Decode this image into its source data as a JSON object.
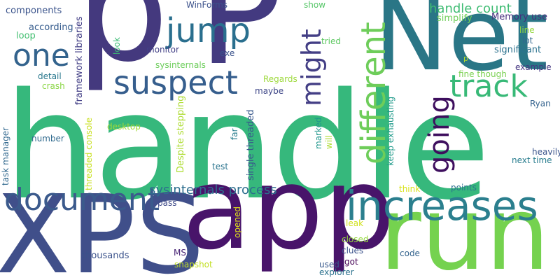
{
  "words": [
    {
      "text": "handle",
      "color": "#36b87c"
    },
    {
      "text": "p",
      "color": "#44397e"
    },
    {
      "text": "P",
      "color": "#433a80"
    },
    {
      "text": "Net",
      "color": "#2a7686"
    },
    {
      "text": "XPS",
      "color": "#404f8a"
    },
    {
      "text": "app",
      "color": "#48146a"
    },
    {
      "text": "run",
      "color": "#75d24f"
    },
    {
      "text": "increases",
      "color": "#2b7f8e"
    },
    {
      "text": "document",
      "color": "#3b5a8c"
    },
    {
      "text": "suspect",
      "color": "#365e8d"
    },
    {
      "text": "jump",
      "color": "#2a6f8e"
    },
    {
      "text": "one",
      "color": "#33638d"
    },
    {
      "text": "track",
      "color": "#38b977"
    },
    {
      "text": "different",
      "color": "#6ecd5a"
    },
    {
      "text": "going",
      "color": "#3e0f5e"
    },
    {
      "text": "might",
      "color": "#433e85"
    },
    {
      "text": "handle count",
      "color": "#3fbc73"
    },
    {
      "text": "sysinternals process",
      "color": "#2d6e8e"
    },
    {
      "text": "components",
      "color": "#3a538b"
    },
    {
      "text": "according",
      "color": "#365c8d"
    },
    {
      "text": "loop",
      "color": "#43bf71"
    },
    {
      "text": "framework libraries",
      "color": "#423e85"
    },
    {
      "text": "WinForms",
      "color": "#3b518b"
    },
    {
      "text": "show",
      "color": "#55c667"
    },
    {
      "text": "simplify",
      "color": "#6ece58"
    },
    {
      "text": "Memory use",
      "color": "#472f7d"
    },
    {
      "text": "line",
      "color": "#95d840"
    },
    {
      "text": "lot",
      "color": "#31678e"
    },
    {
      "text": "significant",
      "color": "#2c728e"
    },
    {
      "text": "look",
      "color": "#3cbb75"
    },
    {
      "text": "monitor",
      "color": "#424086"
    },
    {
      "text": "tried",
      "color": "#5ec962"
    },
    {
      "text": "exe",
      "color": "#3a528b"
    },
    {
      "text": "p",
      "color": "#b5de2b"
    },
    {
      "text": "sysinternals",
      "color": "#6ccd5a"
    },
    {
      "text": "example",
      "color": "#453781"
    },
    {
      "text": "fine though",
      "color": "#7ad151"
    },
    {
      "text": "Ryan",
      "color": "#33628d"
    },
    {
      "text": "Regards",
      "color": "#9dd93b"
    },
    {
      "text": "detail",
      "color": "#2a788e"
    },
    {
      "text": "crash",
      "color": "#8bd646"
    },
    {
      "text": "maybe",
      "color": "#3f4788"
    },
    {
      "text": "Despite stepping",
      "color": "#addc30"
    },
    {
      "text": "threaded console",
      "color": "#c8e020"
    },
    {
      "text": "desktop",
      "color": "#a2da37"
    },
    {
      "text": "single threaded",
      "color": "#38588c"
    },
    {
      "text": "keep exhausting",
      "color": "#1f9a8a"
    },
    {
      "text": "marked",
      "color": "#1f968b"
    },
    {
      "text": "will",
      "color": "#addc30"
    },
    {
      "text": "far",
      "color": "#287d8e"
    },
    {
      "text": "number",
      "color": "#306a8e"
    },
    {
      "text": "task manager",
      "color": "#31688e"
    },
    {
      "text": "heavily",
      "color": "#3a548c"
    },
    {
      "text": "next time",
      "color": "#287c8e"
    },
    {
      "text": "test",
      "color": "#2b748e"
    },
    {
      "text": "think",
      "color": "#d8e219"
    },
    {
      "text": "points",
      "color": "#2c718e"
    },
    {
      "text": "pass",
      "color": "#3e4989"
    },
    {
      "text": "opened",
      "color": "#e2e418"
    },
    {
      "text": "leak",
      "color": "#d0e11c"
    },
    {
      "text": "closed",
      "color": "#95d840"
    },
    {
      "text": "clues",
      "color": "#3b528b"
    },
    {
      "text": "code",
      "color": "#33638d"
    },
    {
      "text": "MS",
      "color": "#482475"
    },
    {
      "text": "thousands",
      "color": "#3b528b"
    },
    {
      "text": "snapshot",
      "color": "#c2df23"
    },
    {
      "text": "used",
      "color": "#38588c"
    },
    {
      "text": "got",
      "color": "#440154"
    },
    {
      "text": "explorer",
      "color": "#2c728e"
    }
  ]
}
